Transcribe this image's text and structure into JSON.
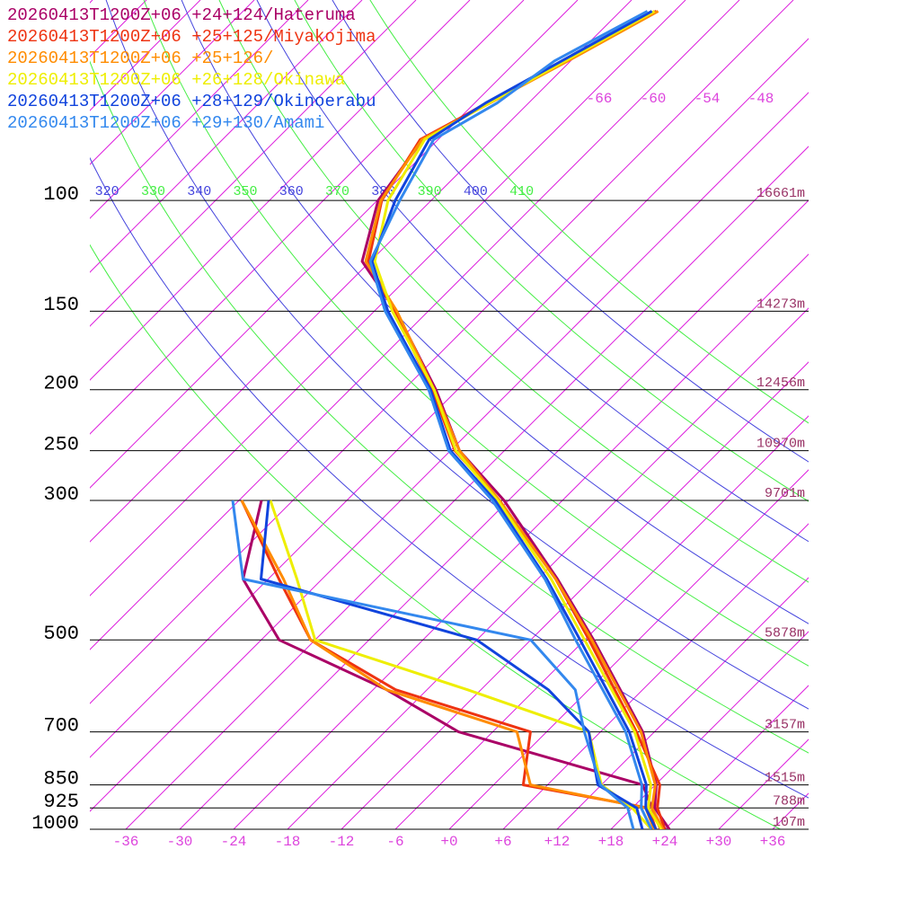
{
  "chart_data": {
    "type": "skewt",
    "ylog": true,
    "ylim": [
      1000,
      48
    ],
    "xlim": [
      -40,
      40
    ],
    "yticks": [
      100,
      150,
      200,
      250,
      300,
      500,
      700,
      850,
      925,
      1000
    ],
    "height_labels": [
      "16661m",
      "14273m",
      "12456m",
      "10970m",
      "9701m",
      "5878m",
      "3157m",
      "1515m",
      "788m",
      "107m"
    ],
    "xticks": [
      -36,
      -30,
      -24,
      -18,
      -12,
      -6,
      {
        "value": 0,
        "label": "+0"
      },
      {
        "value": 6,
        "label": "+6"
      },
      {
        "value": 12,
        "label": "+12"
      },
      {
        "value": 18,
        "label": "+18"
      },
      {
        "value": 24,
        "label": "+24"
      },
      {
        "value": 30,
        "label": "+30"
      },
      {
        "value": 36,
        "label": "+36"
      }
    ],
    "isotherm_labels": [
      {
        "value": -66,
        "label": "-66"
      },
      {
        "value": -60,
        "label": "-60"
      },
      {
        "value": -54,
        "label": "-54"
      },
      {
        "value": -48,
        "label": "-48"
      }
    ],
    "isentropes": [
      310,
      320,
      330,
      340,
      350,
      360,
      370,
      380,
      390,
      400,
      410
    ],
    "temperature_pressure": [
      1000,
      925,
      850,
      700,
      500,
      400,
      300,
      250,
      200,
      150,
      125,
      100,
      80,
      70,
      60,
      50
    ],
    "dewpoint_pressure": [
      1000,
      925,
      850,
      700,
      600,
      500,
      400,
      300
    ],
    "series": [
      {
        "name": "20260413T1200Z+06 +24+124/Hateruma",
        "color": "#aa0066",
        "temperature": [
          24.5,
          20.5,
          18.1,
          10.7,
          -5,
          -15.8,
          -30.5,
          -41,
          -50.4,
          -63.6,
          -72.9,
          -77.9,
          -79.7,
          -76.7,
          -72.8,
          -68
        ],
        "dewpoint": [
          23.5,
          20.2,
          16.6,
          -9.8,
          -22.5,
          -40,
          -50.8,
          -57.5
        ]
      },
      {
        "name": "20260413T1200Z+06 +25+125/Miyakojima",
        "color": "#ee3311",
        "temperature": [
          24,
          20.8,
          18.5,
          10,
          -5.5,
          -16,
          -31,
          -41.5,
          -50.8,
          -63.8,
          -72.2,
          -77.5,
          -80,
          -76.5,
          -72.5,
          -68
        ],
        "dewpoint": [
          23,
          19.8,
          3.3,
          -1.8,
          -21.5,
          -36.5,
          -46.8,
          -59.7
        ]
      },
      {
        "name": "20260413T1200Z+06 +25+126/",
        "color": "#ff8c00",
        "temperature": [
          23.8,
          20.2,
          18,
          10.5,
          -5.2,
          -16,
          -31,
          -41,
          -50.6,
          -63.5,
          -72.5,
          -77.6,
          -79.8,
          -76.3,
          -72.3,
          -67.8
        ],
        "dewpoint": [
          22.8,
          19.5,
          4.1,
          -3.3,
          -22.5,
          -36.5,
          -46.3,
          -59.7
        ]
      },
      {
        "name": "20260413T1200Z+06 +26+128/Okinawa",
        "color": "#eeee00",
        "temperature": [
          23.6,
          19.8,
          17.5,
          9.8,
          -6,
          -16.5,
          -31.2,
          -41.4,
          -50.6,
          -64,
          -71.5,
          -76.8,
          -79.5,
          -76.4,
          -72.6,
          -68.2
        ],
        "dewpoint": [
          22.5,
          18,
          12,
          4.7,
          -13.5,
          -36,
          -44.8,
          -56.5
        ]
      },
      {
        "name": "20260413T1200Z+06 +28+129/Okinoerabu",
        "color": "#1144dd",
        "temperature": [
          23,
          19.5,
          17,
          9.2,
          -6.5,
          -17,
          -31.5,
          -42,
          -51,
          -64.5,
          -71.8,
          -76,
          -79,
          -76.8,
          -73,
          -68.5
        ],
        "dewpoint": [
          21.5,
          18.5,
          11.6,
          4.7,
          -4.5,
          -18,
          -48.8,
          -56.7
        ]
      },
      {
        "name": "20260413T1200Z+06 +29+130/Amami",
        "color": "#3388ee",
        "temperature": [
          22.5,
          19,
          16.5,
          8.8,
          -7,
          -17.2,
          -31.8,
          -42.2,
          -51.2,
          -64.8,
          -72,
          -75.5,
          -78.5,
          -75.5,
          -73.8,
          -69
        ],
        "dewpoint": [
          20.5,
          17.5,
          11.9,
          4.2,
          -1.5,
          -12,
          -50.8,
          -60.7
        ]
      }
    ]
  }
}
